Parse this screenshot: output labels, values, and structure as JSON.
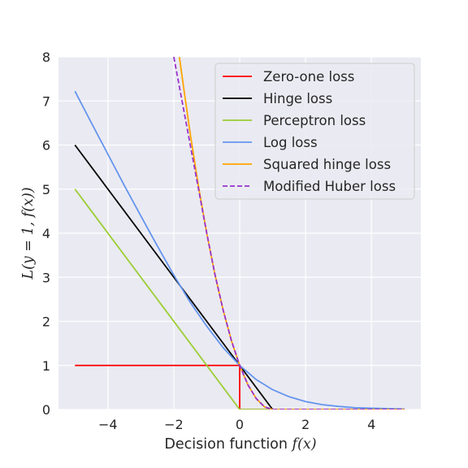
{
  "chart_data": {
    "type": "line",
    "title": "",
    "xlabel_prefix": "Decision function ",
    "xlabel_math": "f(x)",
    "ylabel_prefix": "L(y = 1, ",
    "ylabel_math": "f(x)",
    "ylabel_suffix": ")",
    "xlim": [
      -5.5,
      5.5
    ],
    "ylim": [
      0,
      8
    ],
    "xticks": [
      -4,
      -2,
      0,
      2,
      4
    ],
    "xtick_labels": [
      "−4",
      "−2",
      "0",
      "2",
      "4"
    ],
    "yticks": [
      0,
      1,
      2,
      3,
      4,
      5,
      6,
      7,
      8
    ],
    "ytick_labels": [
      "0",
      "1",
      "2",
      "3",
      "4",
      "5",
      "6",
      "7",
      "8"
    ],
    "grid": true,
    "legend_position": "top-right",
    "x_domain": [
      -5,
      5
    ],
    "series": [
      {
        "name": "Zero-one loss",
        "color": "#ff0000",
        "dash": "solid",
        "points": [
          [
            -5,
            1
          ],
          [
            0,
            1
          ],
          [
            0,
            0
          ],
          [
            5,
            0
          ]
        ]
      },
      {
        "name": "Hinge loss",
        "color": "#000000",
        "dash": "solid",
        "points": [
          [
            -5,
            6
          ],
          [
            -4,
            5
          ],
          [
            -3,
            4
          ],
          [
            -2,
            3
          ],
          [
            -1,
            2
          ],
          [
            0,
            1
          ],
          [
            1,
            0
          ],
          [
            5,
            0
          ]
        ]
      },
      {
        "name": "Perceptron loss",
        "color": "#9acd32",
        "dash": "solid",
        "points": [
          [
            -5,
            5
          ],
          [
            -4,
            4
          ],
          [
            -3,
            3
          ],
          [
            -2,
            2
          ],
          [
            -1,
            1
          ],
          [
            0,
            0
          ],
          [
            5,
            0
          ]
        ]
      },
      {
        "name": "Log loss",
        "color": "#6495ed",
        "dash": "solid",
        "points": [
          [
            -5,
            7.22
          ],
          [
            -4.5,
            6.5
          ],
          [
            -4,
            5.79
          ],
          [
            -3.5,
            5.08
          ],
          [
            -3,
            4.39
          ],
          [
            -2.5,
            3.71
          ],
          [
            -2,
            3.05
          ],
          [
            -1.5,
            2.43
          ],
          [
            -1,
            1.89
          ],
          [
            -0.5,
            1.4
          ],
          [
            0,
            1.0
          ],
          [
            0.5,
            0.68
          ],
          [
            1,
            0.45
          ],
          [
            1.5,
            0.29
          ],
          [
            2,
            0.18
          ],
          [
            2.5,
            0.11
          ],
          [
            3,
            0.07
          ],
          [
            3.5,
            0.04
          ],
          [
            4,
            0.03
          ],
          [
            4.5,
            0.02
          ],
          [
            5,
            0.01
          ]
        ]
      },
      {
        "name": "Squared hinge loss",
        "color": "#ffa500",
        "dash": "solid",
        "points": [
          [
            -1.83,
            8.0
          ],
          [
            -1.75,
            7.56
          ],
          [
            -1.5,
            6.25
          ],
          [
            -1.25,
            5.06
          ],
          [
            -1,
            4.0
          ],
          [
            -0.75,
            3.06
          ],
          [
            -0.5,
            2.25
          ],
          [
            -0.25,
            1.56
          ],
          [
            0,
            1.0
          ],
          [
            0.25,
            0.56
          ],
          [
            0.5,
            0.25
          ],
          [
            0.75,
            0.06
          ],
          [
            1,
            0
          ],
          [
            5,
            0
          ]
        ]
      },
      {
        "name": "Modified Huber loss",
        "color": "#9932cc",
        "dash": "dashed",
        "points": [
          [
            -2,
            8.0
          ],
          [
            -1.75,
            7.0
          ],
          [
            -1.5,
            6.0
          ],
          [
            -1.25,
            5.0
          ],
          [
            -1,
            4.0
          ],
          [
            -0.75,
            3.06
          ],
          [
            -0.5,
            2.25
          ],
          [
            -0.25,
            1.56
          ],
          [
            0,
            1.0
          ],
          [
            0.25,
            0.56
          ],
          [
            0.5,
            0.25
          ],
          [
            0.75,
            0.06
          ],
          [
            1,
            0
          ],
          [
            5,
            0
          ]
        ]
      }
    ]
  }
}
